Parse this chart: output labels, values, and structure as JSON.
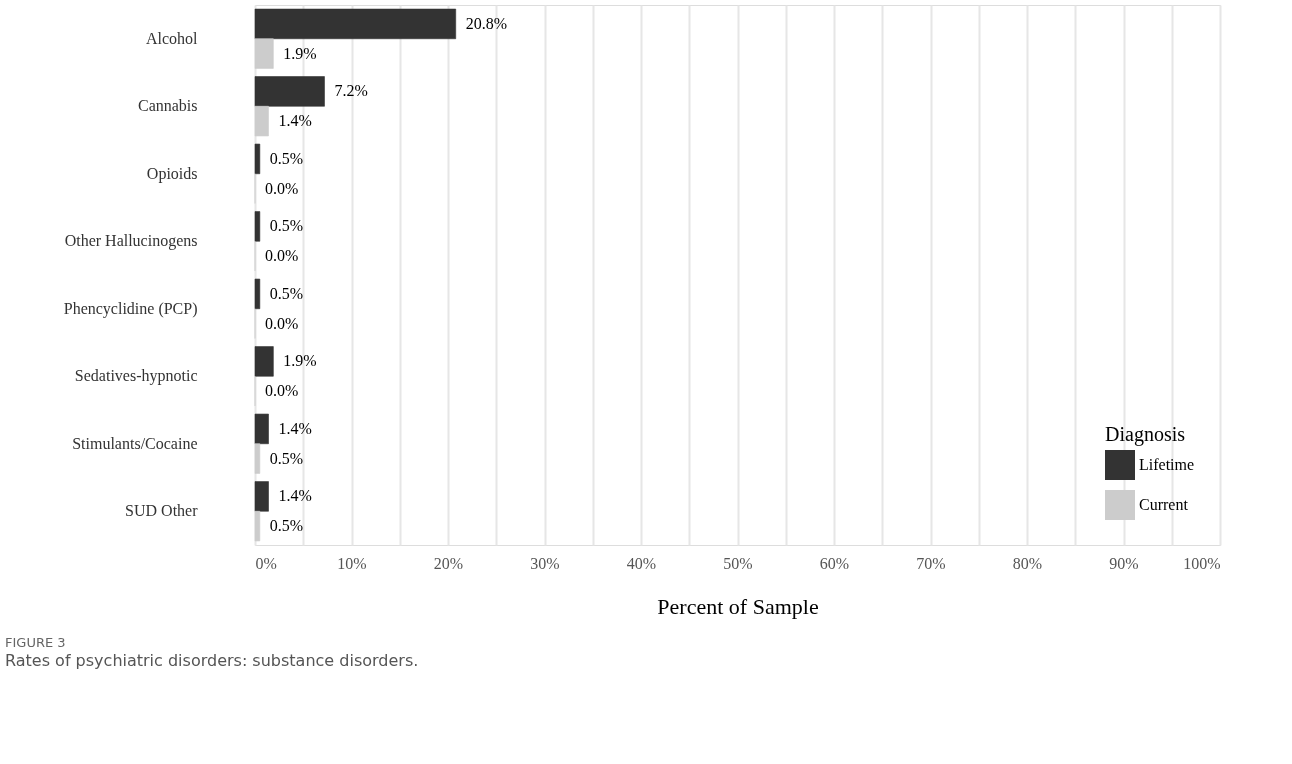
{
  "chart_data": {
    "type": "bar",
    "orientation": "horizontal",
    "xlabel": "Percent of Sample",
    "legend_title": "Diagnosis",
    "legend": "bottom right",
    "grid": "x",
    "categories": [
      "Alcohol",
      "Cannabis",
      "Opioids",
      "Other Hallucinogens",
      "Phencyclidine (PCP)",
      "Sedatives-hypnotic",
      "Stimulants/Cocaine",
      "SUD Other"
    ],
    "series": [
      {
        "name": "Lifetime",
        "color": "#333333",
        "values": [
          20.8,
          7.2,
          0.5,
          0.5,
          0.5,
          1.9,
          1.4,
          1.4
        ],
        "value_labels": [
          "20.8%",
          "7.2%",
          "0.5%",
          "0.5%",
          "0.5%",
          "1.9%",
          "1.4%",
          "1.4%"
        ]
      },
      {
        "name": "Current",
        "color": "#cccccc",
        "values": [
          1.9,
          1.4,
          0.0,
          0.0,
          0.0,
          0.0,
          0.5,
          0.5
        ],
        "value_labels": [
          "1.9%",
          "1.4%",
          "0.0%",
          "0.0%",
          "0.0%",
          "0.0%",
          "0.5%",
          "0.5%"
        ]
      }
    ],
    "xlim": [
      0,
      100
    ],
    "xticks": [
      {
        "value": 0,
        "label": "0%"
      },
      {
        "value": 5,
        "label": null
      },
      {
        "value": 10,
        "label": "10%"
      },
      {
        "value": 15,
        "label": null
      },
      {
        "value": 20,
        "label": "20%"
      },
      {
        "value": 25,
        "label": null
      },
      {
        "value": 30,
        "label": "30%"
      },
      {
        "value": 35,
        "label": null
      },
      {
        "value": 40,
        "label": "40%"
      },
      {
        "value": 45,
        "label": null
      },
      {
        "value": 50,
        "label": "50%"
      },
      {
        "value": 55,
        "label": null
      },
      {
        "value": 60,
        "label": "60%"
      },
      {
        "value": 65,
        "label": null
      },
      {
        "value": 70,
        "label": "70%"
      },
      {
        "value": 75,
        "label": null
      },
      {
        "value": 80,
        "label": "80%"
      },
      {
        "value": 85,
        "label": null
      },
      {
        "value": 90,
        "label": "90%"
      },
      {
        "value": 95,
        "label": null
      },
      {
        "value": 100,
        "label": "100%"
      }
    ],
    "annotations": [
      "FIGURE 3",
      "Rates of psychiatric disorders: substance disorders."
    ]
  }
}
